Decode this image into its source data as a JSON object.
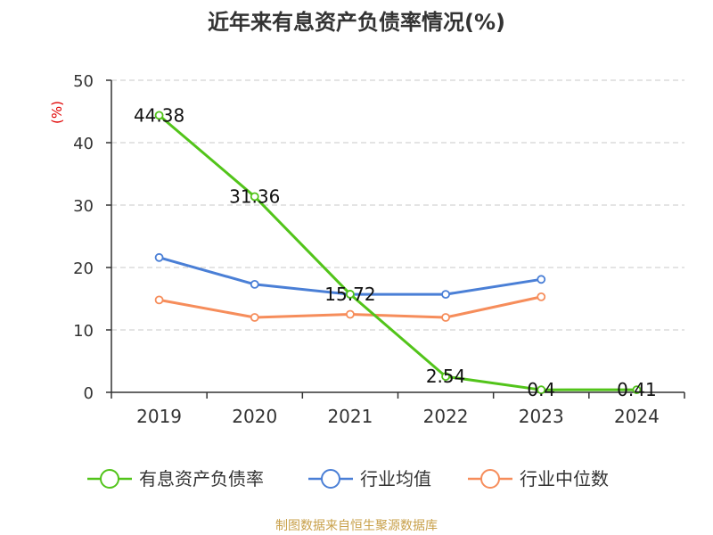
{
  "chart_data": {
    "type": "line",
    "title": "近年来有息资产负债率情况(%)",
    "ylabel": "(%)",
    "ylim": [
      0,
      50
    ],
    "yticks": [
      0,
      10,
      20,
      30,
      40,
      50
    ],
    "categories": [
      "2019",
      "2020",
      "2021",
      "2022",
      "2023",
      "2024"
    ],
    "grid": true,
    "legend_position": "bottom",
    "series": [
      {
        "name": "有息资产负债率",
        "color": "#52c41a",
        "values": [
          44.38,
          31.36,
          15.72,
          2.54,
          0.4,
          0.41
        ],
        "labels": [
          "44.38",
          "31.36",
          "15.72",
          "2.54",
          "0.4",
          "0.41"
        ]
      },
      {
        "name": "行业均值",
        "color": "#4a7fd6",
        "values": [
          21.6,
          17.3,
          15.7,
          15.7,
          18.1,
          null
        ]
      },
      {
        "name": "行业中位数",
        "color": "#f68d5b",
        "values": [
          14.8,
          12.0,
          12.5,
          12.0,
          15.3,
          null
        ]
      }
    ],
    "source": "制图数据来自恒生聚源数据库"
  }
}
